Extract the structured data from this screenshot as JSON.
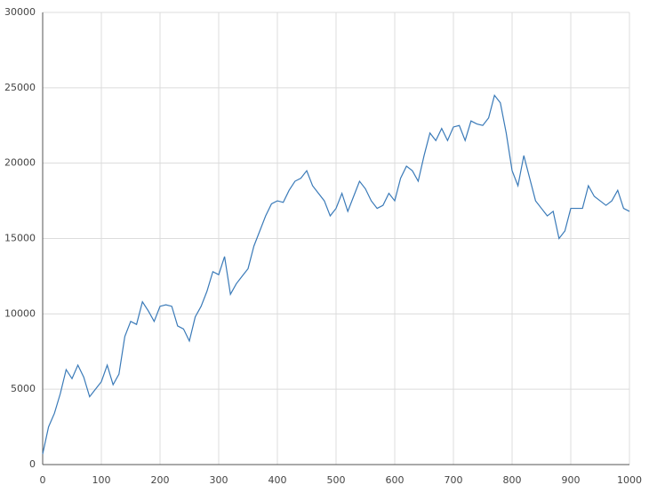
{
  "chart_data": {
    "type": "line",
    "x": [
      0,
      10,
      20,
      30,
      40,
      50,
      60,
      70,
      80,
      90,
      100,
      110,
      120,
      130,
      140,
      150,
      160,
      170,
      180,
      190,
      200,
      210,
      220,
      230,
      240,
      250,
      260,
      270,
      280,
      290,
      300,
      310,
      320,
      330,
      340,
      350,
      360,
      370,
      380,
      390,
      400,
      410,
      420,
      430,
      440,
      450,
      460,
      470,
      480,
      490,
      500,
      510,
      520,
      530,
      540,
      550,
      560,
      570,
      580,
      590,
      600,
      610,
      620,
      630,
      640,
      650,
      660,
      670,
      680,
      690,
      700,
      710,
      720,
      730,
      740,
      750,
      760,
      770,
      780,
      790,
      800,
      810,
      820,
      830,
      840,
      850,
      860,
      870,
      880,
      890,
      900,
      910,
      920,
      930,
      940,
      950,
      960,
      970,
      980,
      990,
      1000
    ],
    "series": [
      {
        "color": "#3a7ab8",
        "values": [
          700,
          2500,
          3400,
          4700,
          6300,
          5700,
          6600,
          5800,
          4500,
          5000,
          5500,
          6600,
          5300,
          6000,
          8500,
          9500,
          9300,
          10800,
          10200,
          9500,
          10500,
          10600,
          10500,
          9200,
          9000,
          8200,
          9800,
          10500,
          11500,
          12800,
          12600,
          13800,
          11300,
          12000,
          12500,
          13000,
          14500,
          15500,
          16500,
          17300,
          17500,
          17400,
          18200,
          18800,
          19000,
          19500,
          18500,
          18000,
          17500,
          16500,
          17000,
          18000,
          16800,
          17800,
          18800,
          18300,
          17500,
          17000,
          17200,
          18000,
          17500,
          19000,
          19800,
          19500,
          18800,
          20500,
          22000,
          21500,
          22300,
          21500,
          22400,
          22500,
          21500,
          22800,
          22600,
          22500,
          23000,
          24500,
          24000,
          22000,
          19500,
          18500,
          20500,
          19000,
          17500,
          17000,
          16500,
          16800,
          15000,
          15500,
          17000,
          17000,
          17000,
          18500,
          17800,
          17500,
          17200,
          17500,
          18200,
          17000,
          16800
        ]
      }
    ],
    "xlim": [
      0,
      1000
    ],
    "xticks": [
      0,
      100,
      200,
      300,
      400,
      500,
      600,
      700,
      800,
      900,
      1000
    ],
    "ylim": [
      0,
      30000
    ],
    "yticks": [
      0,
      5000,
      10000,
      15000,
      20000,
      25000,
      30000
    ],
    "grid": true
  }
}
